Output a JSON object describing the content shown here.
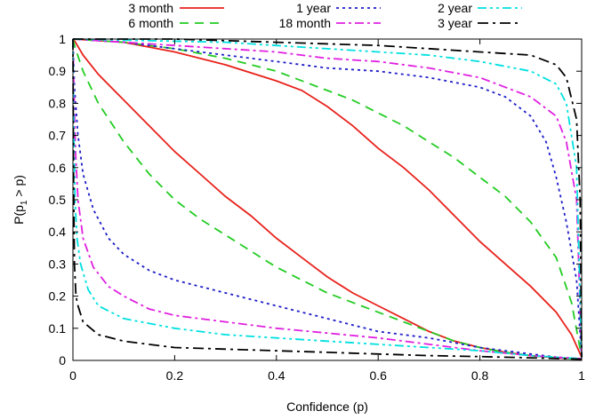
{
  "chart_data": {
    "type": "line",
    "xlabel": "Confidence (p)",
    "ylabel_main": "P(p",
    "ylabel_sub": "1",
    "ylabel_tail": " > p)",
    "xlim": [
      0,
      1
    ],
    "ylim": [
      0,
      1
    ],
    "xticks": [
      "0",
      "0.2",
      "0.4",
      "0.6",
      "0.8",
      "1"
    ],
    "yticks": [
      "0",
      "0.1",
      "0.2",
      "0.3",
      "0.4",
      "0.5",
      "0.6",
      "0.7",
      "0.8",
      "0.9",
      "1"
    ],
    "grid": false,
    "legend_position": "top",
    "series": [
      {
        "name": "3 month",
        "color": "#e8221c",
        "dash": "",
        "lower": [
          [
            0,
            1
          ],
          [
            0.005,
            0.99
          ],
          [
            0.02,
            0.95
          ],
          [
            0.05,
            0.89
          ],
          [
            0.1,
            0.81
          ],
          [
            0.15,
            0.73
          ],
          [
            0.2,
            0.65
          ],
          [
            0.25,
            0.58
          ],
          [
            0.3,
            0.51
          ],
          [
            0.35,
            0.45
          ],
          [
            0.4,
            0.38
          ],
          [
            0.45,
            0.32
          ],
          [
            0.5,
            0.26
          ],
          [
            0.55,
            0.21
          ],
          [
            0.6,
            0.17
          ],
          [
            0.65,
            0.13
          ],
          [
            0.7,
            0.09
          ],
          [
            0.75,
            0.06
          ],
          [
            0.8,
            0.04
          ],
          [
            0.85,
            0.025
          ],
          [
            0.9,
            0.015
          ],
          [
            0.95,
            0.008
          ],
          [
            1,
            0.003
          ]
        ],
        "upper": [
          [
            0,
            1
          ],
          [
            0.1,
            0.99
          ],
          [
            0.2,
            0.96
          ],
          [
            0.3,
            0.92
          ],
          [
            0.4,
            0.87
          ],
          [
            0.45,
            0.84
          ],
          [
            0.5,
            0.79
          ],
          [
            0.55,
            0.73
          ],
          [
            0.6,
            0.66
          ],
          [
            0.65,
            0.6
          ],
          [
            0.7,
            0.53
          ],
          [
            0.75,
            0.45
          ],
          [
            0.8,
            0.37
          ],
          [
            0.85,
            0.3
          ],
          [
            0.9,
            0.23
          ],
          [
            0.95,
            0.15
          ],
          [
            0.98,
            0.08
          ],
          [
            1,
            0.01
          ]
        ]
      },
      {
        "name": "6 month",
        "color": "#22cc22",
        "dash": "10,7",
        "lower": [
          [
            0,
            1
          ],
          [
            0.005,
            0.97
          ],
          [
            0.02,
            0.9
          ],
          [
            0.05,
            0.8
          ],
          [
            0.1,
            0.68
          ],
          [
            0.15,
            0.58
          ],
          [
            0.2,
            0.5
          ],
          [
            0.25,
            0.44
          ],
          [
            0.3,
            0.39
          ],
          [
            0.35,
            0.34
          ],
          [
            0.4,
            0.29
          ],
          [
            0.45,
            0.25
          ],
          [
            0.5,
            0.21
          ],
          [
            0.55,
            0.18
          ],
          [
            0.6,
            0.15
          ],
          [
            0.65,
            0.12
          ],
          [
            0.7,
            0.09
          ],
          [
            0.75,
            0.06
          ],
          [
            0.8,
            0.04
          ],
          [
            0.85,
            0.025
          ],
          [
            0.9,
            0.015
          ],
          [
            0.95,
            0.008
          ],
          [
            1,
            0.003
          ]
        ],
        "upper": [
          [
            0,
            1
          ],
          [
            0.1,
            0.99
          ],
          [
            0.2,
            0.97
          ],
          [
            0.3,
            0.94
          ],
          [
            0.4,
            0.9
          ],
          [
            0.5,
            0.84
          ],
          [
            0.55,
            0.81
          ],
          [
            0.6,
            0.77
          ],
          [
            0.65,
            0.73
          ],
          [
            0.7,
            0.68
          ],
          [
            0.75,
            0.63
          ],
          [
            0.8,
            0.57
          ],
          [
            0.85,
            0.51
          ],
          [
            0.9,
            0.43
          ],
          [
            0.95,
            0.32
          ],
          [
            0.98,
            0.18
          ],
          [
            1,
            0.01
          ]
        ]
      },
      {
        "name": "1 year",
        "color": "#1c1cc8",
        "dash": "3,4",
        "lower": [
          [
            0,
            1
          ],
          [
            0.003,
            0.85
          ],
          [
            0.01,
            0.7
          ],
          [
            0.02,
            0.58
          ],
          [
            0.04,
            0.47
          ],
          [
            0.07,
            0.38
          ],
          [
            0.1,
            0.33
          ],
          [
            0.15,
            0.28
          ],
          [
            0.2,
            0.25
          ],
          [
            0.3,
            0.21
          ],
          [
            0.4,
            0.17
          ],
          [
            0.5,
            0.13
          ],
          [
            0.6,
            0.09
          ],
          [
            0.7,
            0.07
          ],
          [
            0.8,
            0.04
          ],
          [
            0.9,
            0.02
          ],
          [
            0.95,
            0.01
          ],
          [
            1,
            0.005
          ]
        ],
        "upper": [
          [
            0,
            1
          ],
          [
            0.1,
            0.99
          ],
          [
            0.2,
            0.97
          ],
          [
            0.3,
            0.95
          ],
          [
            0.4,
            0.93
          ],
          [
            0.5,
            0.91
          ],
          [
            0.6,
            0.9
          ],
          [
            0.7,
            0.88
          ],
          [
            0.8,
            0.85
          ],
          [
            0.85,
            0.82
          ],
          [
            0.9,
            0.76
          ],
          [
            0.93,
            0.68
          ],
          [
            0.95,
            0.57
          ],
          [
            0.97,
            0.43
          ],
          [
            0.99,
            0.25
          ],
          [
            1,
            0.01
          ]
        ]
      },
      {
        "name": "18 month",
        "color": "#e020e0",
        "dash": "10,4,3,4",
        "lower": [
          [
            0,
            1
          ],
          [
            0.002,
            0.85
          ],
          [
            0.005,
            0.65
          ],
          [
            0.01,
            0.5
          ],
          [
            0.02,
            0.38
          ],
          [
            0.04,
            0.29
          ],
          [
            0.07,
            0.23
          ],
          [
            0.1,
            0.2
          ],
          [
            0.15,
            0.16
          ],
          [
            0.2,
            0.14
          ],
          [
            0.3,
            0.12
          ],
          [
            0.4,
            0.1
          ],
          [
            0.5,
            0.085
          ],
          [
            0.6,
            0.07
          ],
          [
            0.7,
            0.05
          ],
          [
            0.8,
            0.03
          ],
          [
            0.9,
            0.015
          ],
          [
            1,
            0.005
          ]
        ],
        "upper": [
          [
            0,
            1
          ],
          [
            0.2,
            0.98
          ],
          [
            0.4,
            0.96
          ],
          [
            0.5,
            0.94
          ],
          [
            0.6,
            0.93
          ],
          [
            0.7,
            0.91
          ],
          [
            0.8,
            0.88
          ],
          [
            0.85,
            0.85
          ],
          [
            0.9,
            0.82
          ],
          [
            0.95,
            0.76
          ],
          [
            0.97,
            0.68
          ],
          [
            0.99,
            0.5
          ],
          [
            1,
            0.01
          ]
        ]
      },
      {
        "name": "2 year",
        "color": "#00e0e0",
        "dash": "10,4,3,4,3,4",
        "lower": [
          [
            0,
            1
          ],
          [
            0.002,
            0.7
          ],
          [
            0.004,
            0.5
          ],
          [
            0.008,
            0.38
          ],
          [
            0.015,
            0.3
          ],
          [
            0.03,
            0.22
          ],
          [
            0.05,
            0.17
          ],
          [
            0.1,
            0.13
          ],
          [
            0.2,
            0.1
          ],
          [
            0.3,
            0.08
          ],
          [
            0.4,
            0.07
          ],
          [
            0.5,
            0.06
          ],
          [
            0.6,
            0.05
          ],
          [
            0.7,
            0.04
          ],
          [
            0.8,
            0.03
          ],
          [
            0.9,
            0.015
          ],
          [
            1,
            0.005
          ]
        ],
        "upper": [
          [
            0,
            1
          ],
          [
            0.3,
            0.99
          ],
          [
            0.5,
            0.97
          ],
          [
            0.7,
            0.95
          ],
          [
            0.8,
            0.93
          ],
          [
            0.9,
            0.9
          ],
          [
            0.95,
            0.86
          ],
          [
            0.97,
            0.8
          ],
          [
            0.99,
            0.6
          ],
          [
            1,
            0.01
          ]
        ]
      },
      {
        "name": "3 year",
        "color": "#000000",
        "dash": "12,5,3,5",
        "lower": [
          [
            0,
            1
          ],
          [
            0.001,
            0.6
          ],
          [
            0.003,
            0.3
          ],
          [
            0.006,
            0.2
          ],
          [
            0.01,
            0.17
          ],
          [
            0.02,
            0.12
          ],
          [
            0.05,
            0.08
          ],
          [
            0.1,
            0.06
          ],
          [
            0.2,
            0.04
          ],
          [
            0.3,
            0.035
          ],
          [
            0.4,
            0.03
          ],
          [
            0.5,
            0.025
          ],
          [
            0.6,
            0.02
          ],
          [
            0.7,
            0.015
          ],
          [
            0.8,
            0.012
          ],
          [
            0.9,
            0.008
          ],
          [
            1,
            0.004
          ]
        ],
        "upper": [
          [
            0,
            1
          ],
          [
            0.2,
            1
          ],
          [
            0.4,
            0.99
          ],
          [
            0.6,
            0.98
          ],
          [
            0.8,
            0.96
          ],
          [
            0.9,
            0.95
          ],
          [
            0.95,
            0.92
          ],
          [
            0.97,
            0.88
          ],
          [
            0.99,
            0.75
          ],
          [
            0.997,
            0.5
          ],
          [
            1,
            0.01
          ]
        ]
      }
    ]
  }
}
